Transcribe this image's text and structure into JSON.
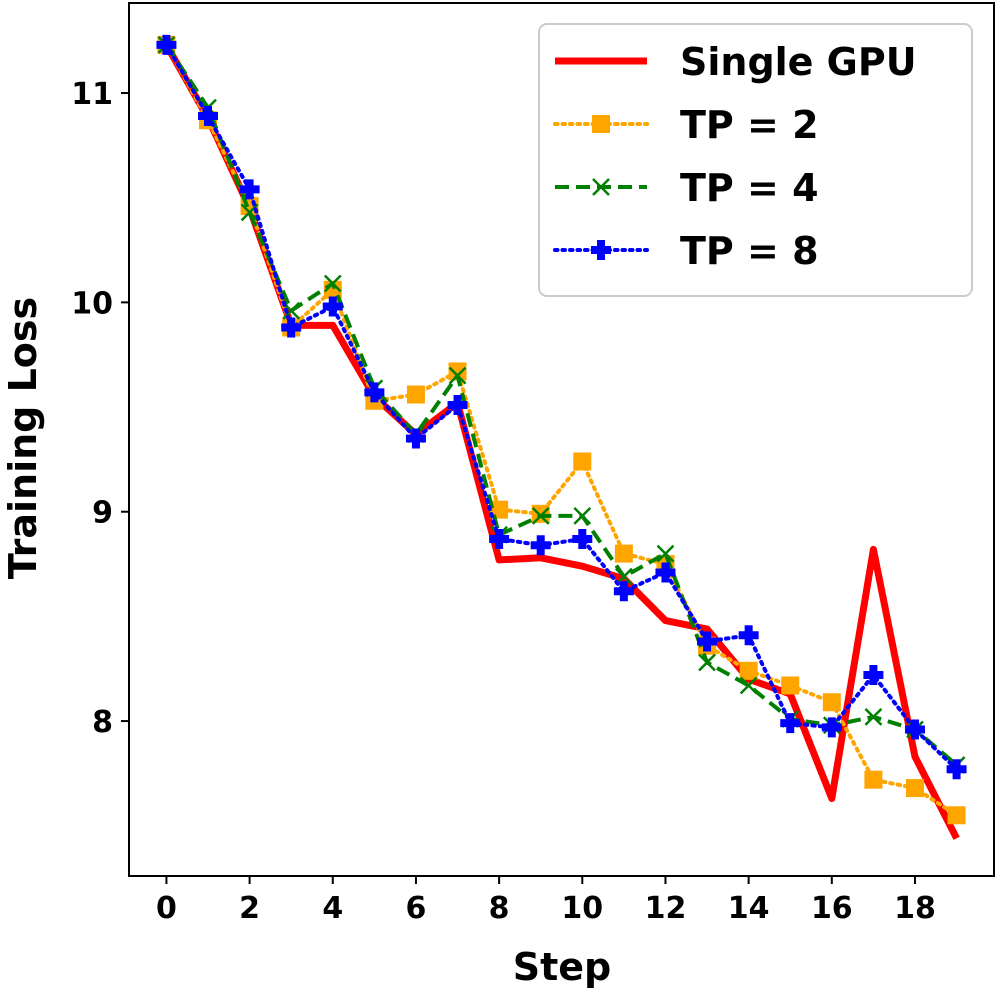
{
  "chart_data": {
    "type": "line",
    "title": "",
    "xlabel": "Step",
    "ylabel": "Training Loss",
    "xlim": [
      -0.9,
      19.9
    ],
    "ylim": [
      7.26,
      11.43
    ],
    "x_ticks": [
      0,
      2,
      4,
      6,
      8,
      10,
      12,
      14,
      16,
      18
    ],
    "y_ticks": [
      8,
      9,
      10,
      11
    ],
    "grid": false,
    "legend_position": "top-right",
    "x": [
      0,
      1,
      2,
      3,
      4,
      5,
      6,
      7,
      8,
      9,
      10,
      11,
      12,
      13,
      14,
      15,
      16,
      17,
      18,
      19
    ],
    "series": [
      {
        "name": "Single GPU",
        "color": "#ff0000",
        "line_style": "solid",
        "marker": "none",
        "values": [
          11.23,
          10.88,
          10.45,
          9.89,
          9.89,
          9.55,
          9.37,
          9.52,
          8.77,
          8.78,
          8.74,
          8.68,
          8.48,
          8.44,
          8.2,
          8.13,
          7.63,
          8.82,
          7.83,
          7.44
        ]
      },
      {
        "name": "TP = 2",
        "color": "#ffa500",
        "line_style": "dotted",
        "marker": "square",
        "values": [
          11.23,
          10.87,
          10.46,
          9.88,
          10.06,
          9.53,
          9.56,
          9.67,
          9.01,
          8.99,
          9.24,
          8.8,
          8.75,
          8.36,
          8.24,
          8.17,
          8.09,
          7.72,
          7.68,
          7.55
        ]
      },
      {
        "name": "TP = 4",
        "color": "#008000",
        "line_style": "dashed",
        "marker": "x",
        "values": [
          11.23,
          10.93,
          10.43,
          9.96,
          10.09,
          9.59,
          9.37,
          9.65,
          8.89,
          8.98,
          8.98,
          8.69,
          8.8,
          8.28,
          8.17,
          8.01,
          7.98,
          8.02,
          7.96,
          7.79
        ]
      },
      {
        "name": "TP = 8",
        "color": "#0000ff",
        "line_style": "dotted",
        "marker": "plus-filled",
        "values": [
          11.23,
          10.89,
          10.54,
          9.88,
          9.98,
          9.57,
          9.35,
          9.51,
          8.87,
          8.84,
          8.87,
          8.62,
          8.71,
          8.38,
          8.41,
          7.99,
          7.97,
          8.22,
          7.96,
          7.77
        ]
      }
    ]
  }
}
